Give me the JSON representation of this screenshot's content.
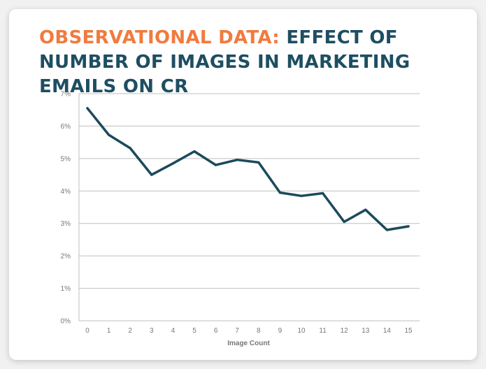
{
  "header": {
    "title_accent": "OBSERVATIONAL DATA:",
    "title_main": "EFFECT OF NUMBER OF IMAGES IN MARKETING EMAILS ON CR"
  },
  "colors": {
    "accent": "#f07b3f",
    "title": "#1e4e62",
    "line": "#1b4a5c",
    "grid": "#bfbfbf"
  },
  "chart_data": {
    "type": "line",
    "title": "OBSERVATIONAL DATA: EFFECT OF NUMBER OF IMAGES IN MARKETING EMAILS ON CR",
    "xlabel": "Image Count",
    "ylabel": "",
    "x": [
      0,
      1,
      2,
      3,
      4,
      5,
      6,
      7,
      8,
      9,
      10,
      11,
      12,
      13,
      14,
      15
    ],
    "x_tick_labels": [
      "0",
      "1",
      "2",
      "3",
      "4",
      "5",
      "6",
      "7",
      "8",
      "9",
      "10",
      "11",
      "12",
      "13",
      "14",
      "15"
    ],
    "y_tick_values": [
      0,
      1,
      2,
      3,
      4,
      5,
      6,
      7
    ],
    "y_tick_labels": [
      "0%",
      "1%",
      "2%",
      "3%",
      "4%",
      "5%",
      "6%",
      "7%"
    ],
    "ylim": [
      0,
      7
    ],
    "grid": true,
    "legend": "none",
    "series": [
      {
        "values": [
          6.55,
          5.73,
          5.32,
          4.5,
          4.85,
          5.22,
          4.8,
          4.96,
          4.88,
          3.95,
          3.85,
          3.93,
          3.05,
          3.42,
          2.8,
          2.91
        ]
      }
    ]
  }
}
